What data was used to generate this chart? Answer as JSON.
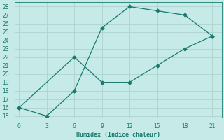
{
  "xlabel": "Humidex (Indice chaleur)",
  "line1_x": [
    0,
    3,
    6,
    9,
    12,
    15,
    18,
    21
  ],
  "line1_y": [
    16,
    15,
    18,
    25.5,
    28,
    27.5,
    27,
    24.5
  ],
  "line2_x": [
    0,
    6,
    9,
    12,
    15,
    18,
    21
  ],
  "line2_y": [
    16,
    22,
    19.0,
    19.0,
    21.0,
    23.0,
    24.5
  ],
  "line_color": "#1a7a6e",
  "bg_color": "#c5eae7",
  "grid_color": "#afd4d0",
  "xlim": [
    -0.5,
    22
  ],
  "ylim": [
    14.8,
    28.5
  ],
  "xticks": [
    0,
    3,
    6,
    9,
    12,
    15,
    18,
    21
  ],
  "yticks": [
    15,
    16,
    17,
    18,
    19,
    20,
    21,
    22,
    23,
    24,
    25,
    26,
    27,
    28
  ]
}
